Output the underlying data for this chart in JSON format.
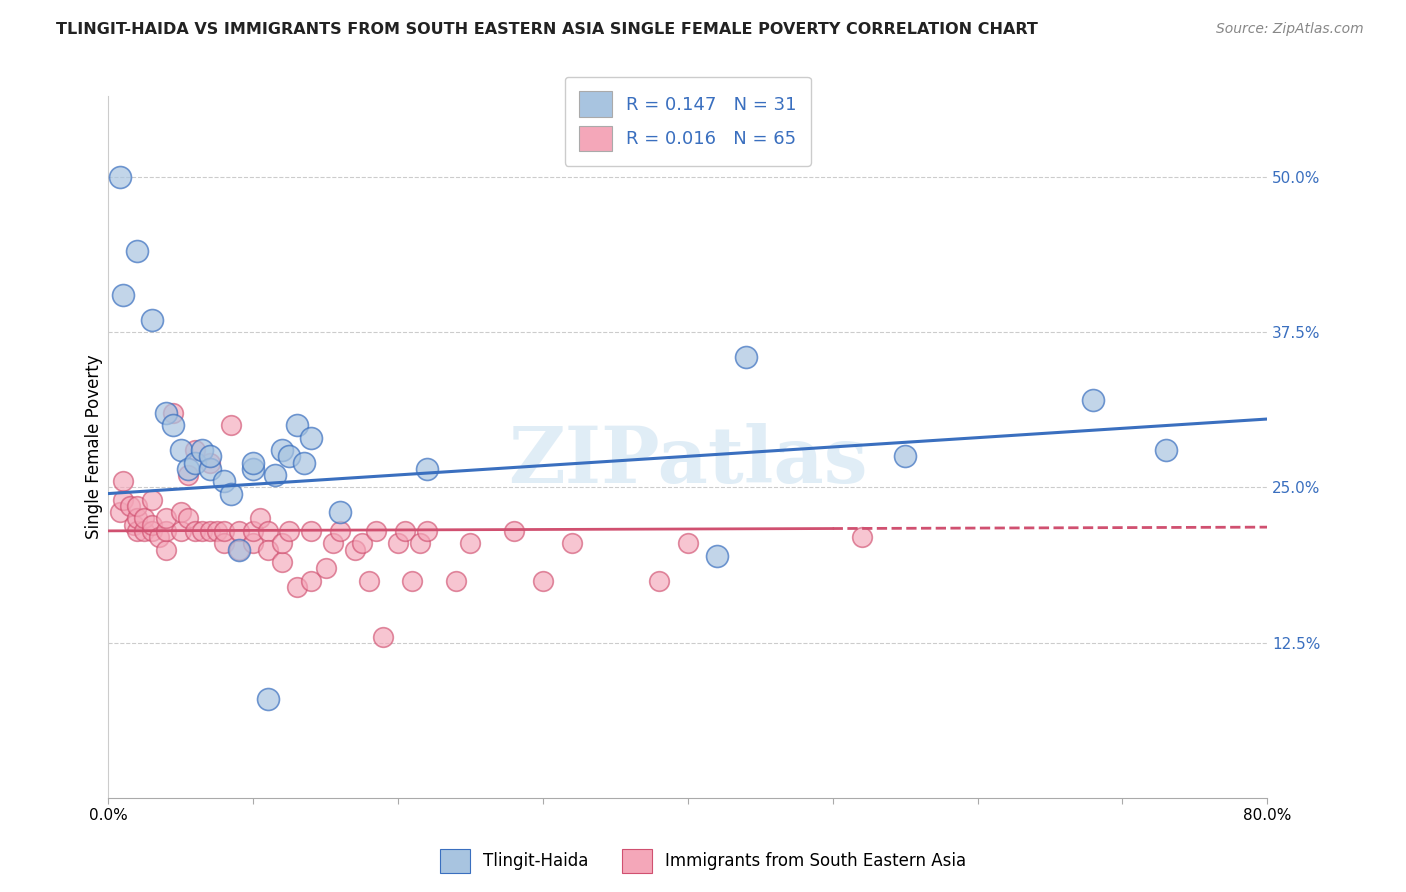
{
  "title": "TLINGIT-HAIDA VS IMMIGRANTS FROM SOUTH EASTERN ASIA SINGLE FEMALE POVERTY CORRELATION CHART",
  "source": "Source: ZipAtlas.com",
  "ylabel": "Single Female Poverty",
  "xlabel": "",
  "xlim": [
    0.0,
    0.8
  ],
  "ylim": [
    0.0,
    0.565
  ],
  "yticks": [
    0.125,
    0.25,
    0.375,
    0.5
  ],
  "ytick_labels": [
    "12.5%",
    "25.0%",
    "37.5%",
    "50.0%"
  ],
  "xticks": [
    0.0,
    0.1,
    0.2,
    0.3,
    0.4,
    0.5,
    0.6,
    0.7,
    0.8
  ],
  "xtick_labels": [
    "0.0%",
    "",
    "",
    "",
    "",
    "",
    "",
    "",
    "80.0%"
  ],
  "blue_R": 0.147,
  "blue_N": 31,
  "pink_R": 0.016,
  "pink_N": 65,
  "blue_color": "#a8c4e0",
  "pink_color": "#f4a7b9",
  "blue_line_color": "#3a6fbf",
  "pink_line_color": "#d05070",
  "legend_label_blue": "Tlingit-Haida",
  "legend_label_pink": "Immigrants from South Eastern Asia",
  "watermark": "ZIPatlas",
  "blue_x": [
    0.008,
    0.02,
    0.01,
    0.03,
    0.04,
    0.045,
    0.05,
    0.055,
    0.06,
    0.065,
    0.07,
    0.07,
    0.08,
    0.085,
    0.09,
    0.1,
    0.1,
    0.11,
    0.115,
    0.12,
    0.125,
    0.13,
    0.135,
    0.14,
    0.16,
    0.22,
    0.42,
    0.44,
    0.55,
    0.68,
    0.73
  ],
  "blue_y": [
    0.5,
    0.44,
    0.405,
    0.385,
    0.31,
    0.3,
    0.28,
    0.265,
    0.27,
    0.28,
    0.265,
    0.275,
    0.255,
    0.245,
    0.2,
    0.265,
    0.27,
    0.08,
    0.26,
    0.28,
    0.275,
    0.3,
    0.27,
    0.29,
    0.23,
    0.265,
    0.195,
    0.355,
    0.275,
    0.32,
    0.28
  ],
  "pink_x": [
    0.008,
    0.01,
    0.01,
    0.015,
    0.018,
    0.02,
    0.02,
    0.02,
    0.025,
    0.025,
    0.03,
    0.03,
    0.03,
    0.035,
    0.04,
    0.04,
    0.04,
    0.045,
    0.05,
    0.05,
    0.055,
    0.055,
    0.06,
    0.06,
    0.065,
    0.07,
    0.07,
    0.075,
    0.08,
    0.08,
    0.085,
    0.09,
    0.09,
    0.1,
    0.1,
    0.105,
    0.11,
    0.11,
    0.12,
    0.12,
    0.125,
    0.13,
    0.14,
    0.14,
    0.15,
    0.155,
    0.16,
    0.17,
    0.175,
    0.18,
    0.185,
    0.19,
    0.2,
    0.205,
    0.21,
    0.215,
    0.22,
    0.24,
    0.25,
    0.28,
    0.3,
    0.32,
    0.38,
    0.4,
    0.52
  ],
  "pink_y": [
    0.23,
    0.24,
    0.255,
    0.235,
    0.22,
    0.215,
    0.225,
    0.235,
    0.215,
    0.225,
    0.215,
    0.22,
    0.24,
    0.21,
    0.2,
    0.215,
    0.225,
    0.31,
    0.215,
    0.23,
    0.225,
    0.26,
    0.215,
    0.28,
    0.215,
    0.215,
    0.27,
    0.215,
    0.205,
    0.215,
    0.3,
    0.2,
    0.215,
    0.205,
    0.215,
    0.225,
    0.215,
    0.2,
    0.19,
    0.205,
    0.215,
    0.17,
    0.175,
    0.215,
    0.185,
    0.205,
    0.215,
    0.2,
    0.205,
    0.175,
    0.215,
    0.13,
    0.205,
    0.215,
    0.175,
    0.205,
    0.215,
    0.175,
    0.205,
    0.215,
    0.175,
    0.205,
    0.175,
    0.205,
    0.21
  ]
}
